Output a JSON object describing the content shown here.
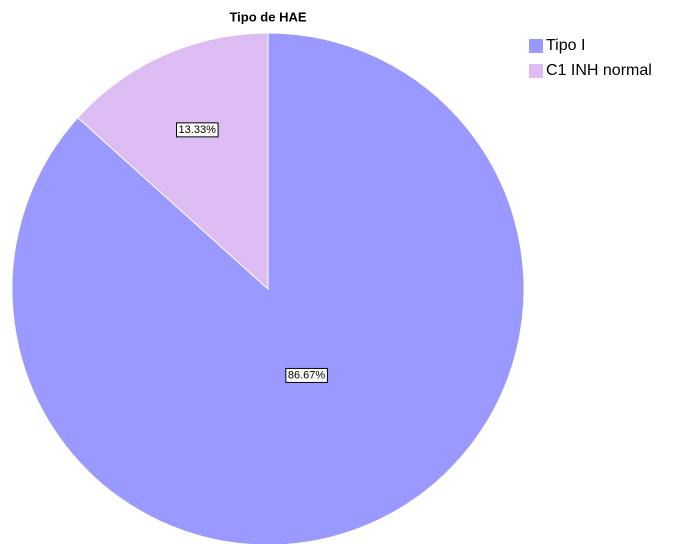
{
  "chart_data": {
    "type": "pie",
    "title": "Tipo de HAE",
    "categories": [
      "Tipo I",
      "C1 INH normal"
    ],
    "values": [
      86.67,
      13.33
    ],
    "value_labels": [
      "86.67%",
      "13.33%"
    ],
    "colors": [
      "#9999ff",
      "#dcbcf2"
    ],
    "legend": "top-right"
  }
}
